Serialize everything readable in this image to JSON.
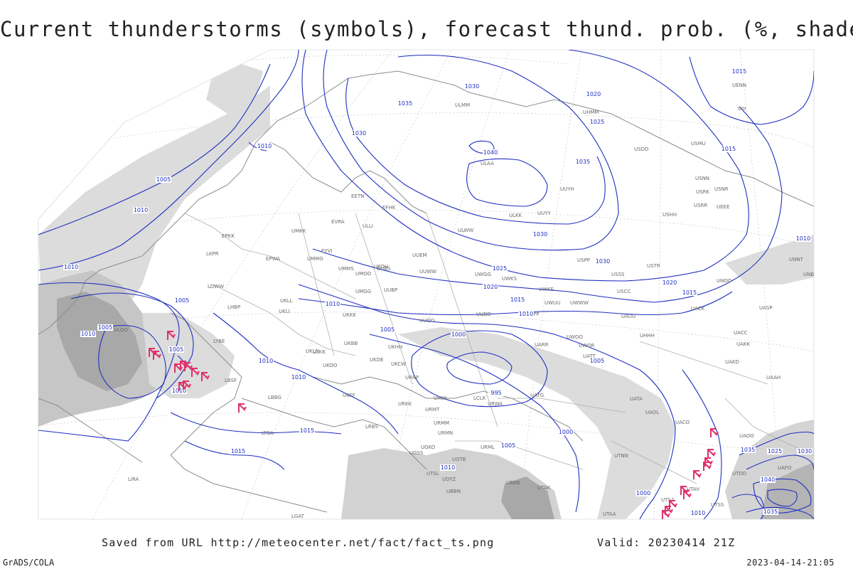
{
  "title": "Current thunderstorms (symbols), forecast thund. prob. (%, shaded)",
  "footer": {
    "saved_from": "Saved from URL http://meteocenter.net/fact/fact_ts.png",
    "valid": "Valid: 20230414 21Z"
  },
  "credit": "GrADS/COLA",
  "timestamp": "2023-04-14-21:05",
  "colors": {
    "isobar": "#1f2fbf",
    "coast": "#8c8c8c",
    "border": "#b0b0b0",
    "shade_light": "#dcdcdc",
    "shade_mid": "#c6c6c6",
    "shade_dark": "#a8a8a8",
    "storm_symbol": "#e0306a",
    "graticule": "#b8b8b8"
  },
  "isobar_labels": [
    "1010",
    "1005",
    "1010",
    "1010",
    "1005",
    "1005",
    "1005",
    "1010",
    "1010",
    "1010",
    "1015",
    "1015",
    "1010",
    "1015",
    "1030",
    "1035",
    "1030",
    "1040",
    "1035",
    "1030",
    "1025",
    "1020",
    "1015",
    "1010",
    "1005",
    "1000",
    "995",
    "1000",
    "1005",
    "1010",
    "1020",
    "1025",
    "1030",
    "1035",
    "1040",
    "1015",
    "1020",
    "1015",
    "1010",
    "1025",
    "1030",
    "1005",
    "1000",
    "1010",
    "1010",
    "1035"
  ],
  "station_labels": [
    "ULAA",
    "ULMM",
    "UUYH",
    "ULKK",
    "UUYY",
    "USHH",
    "ULWW",
    "USPP",
    "USSS",
    "USCC",
    "USTR",
    "USDD",
    "USMU",
    "USRR",
    "USRK",
    "USNN",
    "USNR",
    "UEEE",
    "UENN",
    "UHMM",
    "UIII",
    "UNNT",
    "UNBB",
    "UNOO",
    "UACK",
    "UAUU",
    "UASP",
    "UACC",
    "UAKK",
    "UAKD",
    "UAAH",
    "UATT",
    "UWOR",
    "UWOO",
    "UARR",
    "UATG",
    "UATA",
    "UAOL",
    "UACO",
    "UAOO",
    "UTNN",
    "UTAK",
    "UTAA",
    "UTAV",
    "UTSA",
    "UTSS",
    "UTDD",
    "UAFO",
    "UMKK",
    "UMMG",
    "UMMS",
    "UMOO",
    "UMGG",
    "UUBP",
    "UUBS",
    "UUWW",
    "UUEM",
    "UUOO",
    "UWGG",
    "UWKS",
    "UWKE",
    "UWUU",
    "UWWW",
    "UWPP",
    "UUDD",
    "UKHH",
    "UKDE",
    "UKCW",
    "UKFF",
    "UKKK",
    "UKBB",
    "UKLL",
    "UKLI",
    "UKOO",
    "UKOH",
    "UKLN",
    "URRP",
    "URWI",
    "URWA",
    "URKK",
    "URMT",
    "URMM",
    "URMN",
    "URML",
    "UGSS",
    "UGKO",
    "UGTB",
    "UBBB",
    "UBBN",
    "UDYZ",
    "UTSL",
    "EETN",
    "EVRA",
    "EYVI",
    "EPWA",
    "EPKK",
    "LKPR",
    "LOWW",
    "LHBP",
    "LYBE",
    "LBSF",
    "LBBG",
    "LTBA",
    "LRBS",
    "LUKK",
    "EFHK",
    "ULLI",
    "ULOO",
    "LIRA",
    "LGAT",
    "LCLK",
    "UHHH",
    "UAAA"
  ],
  "map": {
    "region": "Europe and Western Asia",
    "projection": "polar stereographic",
    "overlays": [
      "sea level pressure isobars (hPa)",
      "coastlines",
      "country borders",
      "current thunderstorm symbols",
      "thunderstorm probability shading (%)"
    ]
  }
}
